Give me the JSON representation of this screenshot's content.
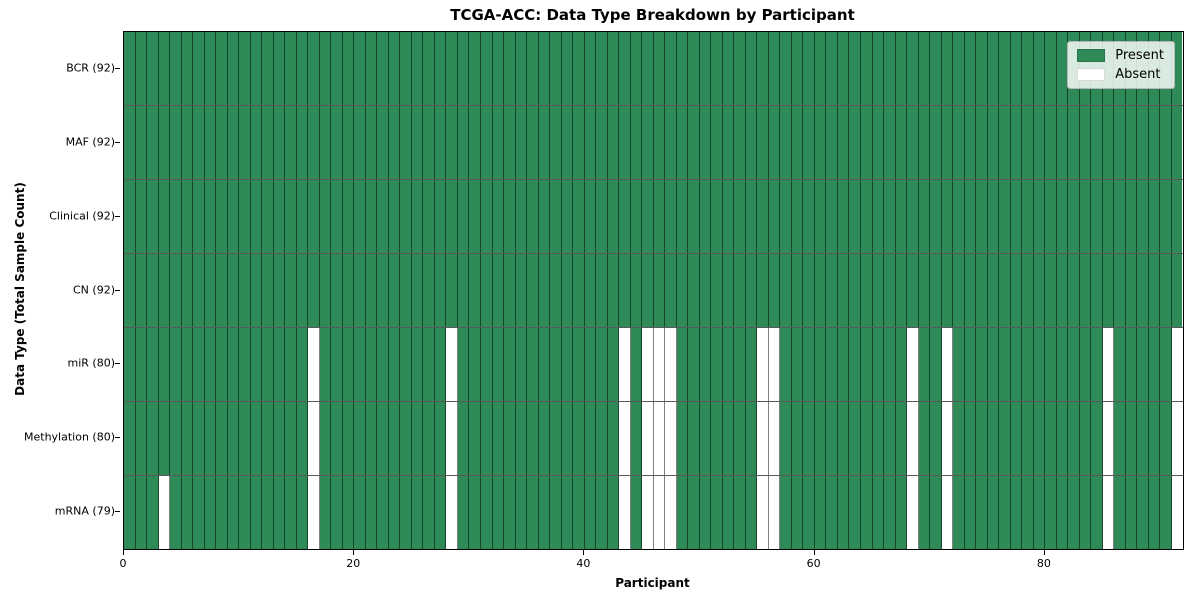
{
  "chart_data": {
    "type": "heatmap",
    "title": "TCGA-ACC: Data Type Breakdown by Participant",
    "xlabel": "Participant",
    "ylabel": "Data Type (Total Sample Count)",
    "n_participants": 92,
    "x_ticks": [
      0,
      20,
      40,
      60,
      80
    ],
    "rows": [
      {
        "label": "BCR (92)",
        "data_type": "BCR",
        "present_count": 92,
        "absent_participants": []
      },
      {
        "label": "MAF (92)",
        "data_type": "MAF",
        "present_count": 92,
        "absent_participants": []
      },
      {
        "label": "Clinical (92)",
        "data_type": "Clinical",
        "present_count": 92,
        "absent_participants": []
      },
      {
        "label": "CN (92)",
        "data_type": "CN",
        "present_count": 92,
        "absent_participants": []
      },
      {
        "label": "miR (80)",
        "data_type": "miR",
        "present_count": 80,
        "absent_participants": [
          16,
          28,
          43,
          45,
          46,
          47,
          55,
          56,
          68,
          71,
          85,
          91
        ]
      },
      {
        "label": "Methylation (80)",
        "data_type": "Methylation",
        "present_count": 80,
        "absent_participants": [
          16,
          28,
          43,
          45,
          46,
          47,
          55,
          56,
          68,
          71,
          85,
          91
        ]
      },
      {
        "label": "mRNA (79)",
        "data_type": "mRNA",
        "present_count": 79,
        "absent_participants": [
          3,
          16,
          28,
          43,
          45,
          46,
          47,
          55,
          56,
          68,
          71,
          85,
          91
        ]
      }
    ],
    "legend": [
      {
        "label": "Present",
        "color": "#2e8b57"
      },
      {
        "label": "Absent",
        "color": "#ffffff"
      }
    ],
    "colors": {
      "present": "#2e8b57",
      "absent": "#ffffff"
    }
  }
}
